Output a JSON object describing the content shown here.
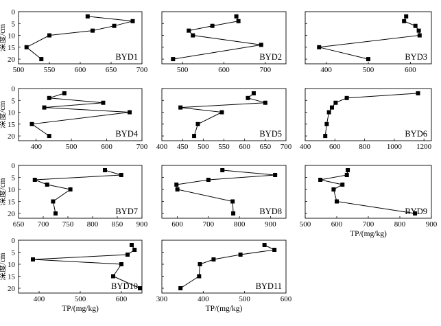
{
  "chart_data": [
    {
      "type": "line",
      "title": "BYD1",
      "x": [
        612,
        685,
        655,
        620,
        550,
        513,
        537
      ],
      "y": [
        2,
        4,
        6,
        8,
        10,
        15,
        20
      ],
      "xlim": [
        500,
        700
      ],
      "xticks": [
        "500",
        "550",
        "600",
        "650",
        "700"
      ],
      "ylim": [
        0,
        22
      ],
      "yticks": [
        "0",
        "5",
        "10",
        "15",
        "20"
      ],
      "show_xticklabels": true,
      "show_yticklabels": true,
      "ylabel": "深度/cm",
      "xlabel": ""
    },
    {
      "type": "line",
      "title": "BYD2",
      "x": [
        630,
        635,
        572,
        515,
        525,
        690,
        477
      ],
      "y": [
        2,
        4,
        6,
        8,
        10,
        14,
        20
      ],
      "xlim": [
        450,
        750
      ],
      "xticks": [
        "500",
        "600",
        "700"
      ],
      "ylim": [
        0,
        22
      ],
      "yticks": [
        "0",
        "5",
        "10",
        "15",
        "20"
      ],
      "show_xticklabels": true,
      "show_yticklabels": false,
      "ylabel": "",
      "xlabel": ""
    },
    {
      "type": "line",
      "title": "BYD3",
      "x": [
        590,
        585,
        612,
        620,
        622,
        383,
        500
      ],
      "y": [
        2,
        4,
        6,
        8,
        10,
        15,
        20
      ],
      "xlim": [
        350,
        650
      ],
      "xticks": [
        "400",
        "500",
        "600"
      ],
      "ylim": [
        0,
        22
      ],
      "yticks": [
        "0",
        "5",
        "10",
        "15",
        "20"
      ],
      "show_xticklabels": true,
      "show_yticklabels": false,
      "ylabel": "",
      "xlabel": ""
    },
    {
      "type": "line",
      "title": "BYD4",
      "x": [
        480,
        437,
        590,
        423,
        665,
        388,
        437
      ],
      "y": [
        2,
        4,
        6,
        8,
        10,
        15,
        20
      ],
      "xlim": [
        350,
        700
      ],
      "xticks": [
        "400",
        "500",
        "600",
        "700"
      ],
      "ylim": [
        0,
        22
      ],
      "yticks": [
        "0",
        "5",
        "10",
        "15",
        "20"
      ],
      "show_xticklabels": true,
      "show_yticklabels": true,
      "ylabel": "深度/cm",
      "xlabel": ""
    },
    {
      "type": "line",
      "title": "BYD5",
      "x": [
        622,
        608,
        650,
        445,
        545,
        487,
        478
      ],
      "y": [
        2,
        4,
        6,
        8,
        10,
        15,
        20
      ],
      "xlim": [
        400,
        700
      ],
      "xticks": [
        "400",
        "450",
        "500",
        "550",
        "600",
        "650",
        "700"
      ],
      "ylim": [
        0,
        22
      ],
      "yticks": [
        "0",
        "5",
        "10",
        "15",
        "20"
      ],
      "show_xticklabels": true,
      "show_yticklabels": false,
      "ylabel": "",
      "xlabel": ""
    },
    {
      "type": "line",
      "title": "BYD6",
      "x": [
        1160,
        680,
        605,
        580,
        560,
        545,
        535
      ],
      "y": [
        2,
        4,
        6,
        8,
        10,
        15,
        20
      ],
      "xlim": [
        400,
        1250
      ],
      "xticks": [
        "400",
        "600",
        "800",
        "1000",
        "1200"
      ],
      "ylim": [
        0,
        22
      ],
      "yticks": [
        "0",
        "5",
        "10",
        "15",
        "20"
      ],
      "show_xticklabels": true,
      "show_yticklabels": false,
      "ylabel": "",
      "xlabel": ""
    },
    {
      "type": "line",
      "title": "BYD7",
      "x": [
        825,
        858,
        683,
        708,
        755,
        720,
        725
      ],
      "y": [
        2,
        4,
        6,
        8,
        10,
        15,
        20
      ],
      "xlim": [
        650,
        900
      ],
      "xticks": [
        "650",
        "700",
        "750",
        "800",
        "850",
        "900"
      ],
      "ylim": [
        0,
        22
      ],
      "yticks": [
        "0",
        "5",
        "10",
        "15",
        "20"
      ],
      "show_xticklabels": true,
      "show_yticklabels": true,
      "ylabel": "深度/cm",
      "xlabel": ""
    },
    {
      "type": "line",
      "title": "BYD8",
      "x": [
        745,
        915,
        700,
        597,
        600,
        778,
        780
      ],
      "y": [
        2,
        4,
        6,
        8,
        10,
        15,
        20
      ],
      "xlim": [
        550,
        950
      ],
      "xticks": [
        "600",
        "700",
        "800",
        "900"
      ],
      "ylim": [
        0,
        22
      ],
      "yticks": [
        "0",
        "5",
        "10",
        "15",
        "20"
      ],
      "show_xticklabels": true,
      "show_yticklabels": false,
      "ylabel": "",
      "xlabel": ""
    },
    {
      "type": "line",
      "title": "BYD9",
      "x": [
        635,
        632,
        548,
        618,
        590,
        600,
        848
      ],
      "y": [
        2,
        4,
        6,
        8,
        10,
        15,
        20
      ],
      "xlim": [
        500,
        900
      ],
      "xticks": [
        "500",
        "600",
        "700",
        "800",
        "900"
      ],
      "ylim": [
        0,
        22
      ],
      "yticks": [
        "0",
        "5",
        "10",
        "15",
        "20"
      ],
      "show_xticklabels": true,
      "show_yticklabels": false,
      "ylabel": "",
      "xlabel": "TP/(mg/kg)"
    },
    {
      "type": "line",
      "title": "BYD10",
      "x": [
        625,
        632,
        615,
        385,
        600,
        580,
        645
      ],
      "y": [
        2,
        4,
        6,
        8,
        10,
        15,
        20
      ],
      "xlim": [
        350,
        650
      ],
      "xticks": [
        "400",
        "500",
        "600"
      ],
      "ylim": [
        0,
        22
      ],
      "yticks": [
        "0",
        "5",
        "10",
        "15",
        "20"
      ],
      "show_xticklabels": true,
      "show_yticklabels": true,
      "ylabel": "深度/cm",
      "xlabel": "TP/(mg/kg)"
    },
    {
      "type": "line",
      "title": "BYD11",
      "x": [
        548,
        572,
        490,
        425,
        392,
        390,
        345
      ],
      "y": [
        2,
        4,
        6,
        8,
        10,
        15,
        20
      ],
      "xlim": [
        300,
        600
      ],
      "xticks": [
        "300",
        "400",
        "500",
        "600"
      ],
      "ylim": [
        0,
        22
      ],
      "yticks": [
        "0",
        "5",
        "10",
        "15",
        "20"
      ],
      "show_xticklabels": true,
      "show_yticklabels": false,
      "ylabel": "",
      "xlabel": "TP/(mg/kg)"
    }
  ]
}
